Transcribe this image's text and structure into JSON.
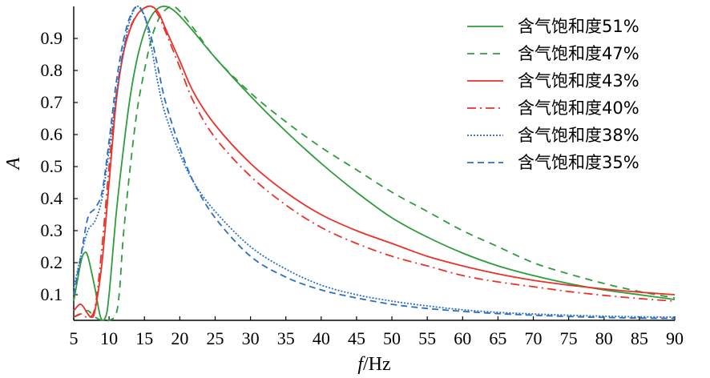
{
  "chart_data": {
    "type": "line",
    "xlabel": {
      "italic": "f",
      "rest": "/Hz"
    },
    "ylabel": "A",
    "xlim": [
      5,
      90
    ],
    "ylim": [
      0.02,
      1.0
    ],
    "xticks": [
      5,
      10,
      15,
      20,
      25,
      30,
      35,
      40,
      45,
      50,
      55,
      60,
      65,
      70,
      75,
      80,
      85,
      90
    ],
    "yticks": [
      0.1,
      0.2,
      0.3,
      0.4,
      0.5,
      0.6,
      0.7,
      0.8,
      0.9
    ],
    "ytick_labels": [
      "0.1",
      "0.2",
      "0.3",
      "0.4",
      "0.5",
      "0.6",
      "0.7",
      "0.8",
      "0.9"
    ],
    "grid": false,
    "legend_position": "top-right",
    "series": [
      {
        "name": "含气饱和度51%",
        "color": "#2e9c3a",
        "dash": "solid",
        "points": [
          [
            5,
            0.08
          ],
          [
            6,
            0.2
          ],
          [
            6.5,
            0.23
          ],
          [
            7,
            0.22
          ],
          [
            8,
            0.12
          ],
          [
            8.8,
            0.03
          ],
          [
            9.5,
            0.03
          ],
          [
            10,
            0.1
          ],
          [
            11,
            0.35
          ],
          [
            12,
            0.55
          ],
          [
            13,
            0.72
          ],
          [
            14,
            0.84
          ],
          [
            15,
            0.92
          ],
          [
            16,
            0.97
          ],
          [
            17,
            0.995
          ],
          [
            18,
            1.0
          ],
          [
            19,
            0.99
          ],
          [
            20,
            0.97
          ],
          [
            22,
            0.92
          ],
          [
            25,
            0.84
          ],
          [
            30,
            0.72
          ],
          [
            35,
            0.61
          ],
          [
            40,
            0.51
          ],
          [
            45,
            0.42
          ],
          [
            50,
            0.34
          ],
          [
            55,
            0.28
          ],
          [
            60,
            0.23
          ],
          [
            65,
            0.19
          ],
          [
            70,
            0.16
          ],
          [
            75,
            0.135
          ],
          [
            80,
            0.115
          ],
          [
            85,
            0.1
          ],
          [
            90,
            0.085
          ]
        ]
      },
      {
        "name": "含气饱和度47%",
        "color": "#2e9c3a",
        "dash": "9,7",
        "points": [
          [
            5,
            0.03
          ],
          [
            6,
            0.04
          ],
          [
            7,
            0.05
          ],
          [
            8,
            0.03
          ],
          [
            9,
            0.02
          ],
          [
            10,
            0.02
          ],
          [
            11,
            0.04
          ],
          [
            11.5,
            0.12
          ],
          [
            12,
            0.28
          ],
          [
            13,
            0.5
          ],
          [
            14,
            0.68
          ],
          [
            15,
            0.8
          ],
          [
            16,
            0.9
          ],
          [
            17,
            0.96
          ],
          [
            18,
            0.99
          ],
          [
            19,
            1.0
          ],
          [
            20,
            0.985
          ],
          [
            22,
            0.93
          ],
          [
            25,
            0.84
          ],
          [
            30,
            0.73
          ],
          [
            35,
            0.64
          ],
          [
            40,
            0.56
          ],
          [
            45,
            0.49
          ],
          [
            50,
            0.42
          ],
          [
            55,
            0.36
          ],
          [
            60,
            0.3
          ],
          [
            65,
            0.25
          ],
          [
            70,
            0.2
          ],
          [
            75,
            0.165
          ],
          [
            80,
            0.135
          ],
          [
            85,
            0.11
          ],
          [
            90,
            0.09
          ]
        ]
      },
      {
        "name": "含气饱和度43%",
        "color": "#e8322a",
        "dash": "solid",
        "points": [
          [
            5,
            0.05
          ],
          [
            6,
            0.07
          ],
          [
            7,
            0.04
          ],
          [
            7.5,
            0.03
          ],
          [
            8,
            0.05
          ],
          [
            9,
            0.2
          ],
          [
            10,
            0.45
          ],
          [
            11,
            0.7
          ],
          [
            12,
            0.85
          ],
          [
            13,
            0.93
          ],
          [
            14,
            0.975
          ],
          [
            15,
            0.995
          ],
          [
            16,
            1.0
          ],
          [
            17,
            0.98
          ],
          [
            18,
            0.93
          ],
          [
            20,
            0.83
          ],
          [
            22,
            0.73
          ],
          [
            25,
            0.63
          ],
          [
            30,
            0.51
          ],
          [
            35,
            0.42
          ],
          [
            40,
            0.35
          ],
          [
            45,
            0.3
          ],
          [
            50,
            0.26
          ],
          [
            55,
            0.22
          ],
          [
            60,
            0.19
          ],
          [
            65,
            0.165
          ],
          [
            70,
            0.145
          ],
          [
            75,
            0.13
          ],
          [
            80,
            0.118
          ],
          [
            85,
            0.108
          ],
          [
            90,
            0.1
          ]
        ]
      },
      {
        "name": "含气饱和度40%",
        "color": "#e8322a",
        "dash": "11,5,2,5",
        "points": [
          [
            5,
            0.03
          ],
          [
            6,
            0.04
          ],
          [
            7,
            0.03
          ],
          [
            8,
            0.06
          ],
          [
            9,
            0.25
          ],
          [
            10,
            0.5
          ],
          [
            11,
            0.72
          ],
          [
            12,
            0.86
          ],
          [
            13,
            0.935
          ],
          [
            14,
            0.975
          ],
          [
            15,
            0.995
          ],
          [
            16,
            1.0
          ],
          [
            17,
            0.97
          ],
          [
            18,
            0.92
          ],
          [
            20,
            0.81
          ],
          [
            22,
            0.7
          ],
          [
            25,
            0.59
          ],
          [
            30,
            0.47
          ],
          [
            35,
            0.38
          ],
          [
            40,
            0.31
          ],
          [
            45,
            0.26
          ],
          [
            50,
            0.22
          ],
          [
            55,
            0.19
          ],
          [
            60,
            0.16
          ],
          [
            65,
            0.14
          ],
          [
            70,
            0.125
          ],
          [
            75,
            0.11
          ],
          [
            80,
            0.098
          ],
          [
            85,
            0.088
          ],
          [
            90,
            0.08
          ]
        ]
      },
      {
        "name": "含气饱和度38%",
        "color": "#2c6fc0",
        "dash": "2,2",
        "points": [
          [
            5,
            0.12
          ],
          [
            6,
            0.22
          ],
          [
            7,
            0.3
          ],
          [
            8,
            0.33
          ],
          [
            9,
            0.4
          ],
          [
            10,
            0.55
          ],
          [
            11,
            0.72
          ],
          [
            12,
            0.86
          ],
          [
            13,
            0.96
          ],
          [
            14,
            1.0
          ],
          [
            15,
            0.97
          ],
          [
            16,
            0.87
          ],
          [
            17,
            0.75
          ],
          [
            18,
            0.66
          ],
          [
            20,
            0.54
          ],
          [
            22,
            0.45
          ],
          [
            25,
            0.36
          ],
          [
            30,
            0.25
          ],
          [
            35,
            0.18
          ],
          [
            40,
            0.13
          ],
          [
            45,
            0.1
          ],
          [
            50,
            0.08
          ],
          [
            55,
            0.065
          ],
          [
            60,
            0.053
          ],
          [
            65,
            0.045
          ],
          [
            70,
            0.04
          ],
          [
            75,
            0.036
          ],
          [
            80,
            0.033
          ],
          [
            85,
            0.031
          ],
          [
            90,
            0.03
          ]
        ]
      },
      {
        "name": "含气饱和度35%",
        "color": "#2c6fc0",
        "dash": "8,5",
        "points": [
          [
            5,
            0.1
          ],
          [
            6,
            0.22
          ],
          [
            7,
            0.34
          ],
          [
            8,
            0.37
          ],
          [
            9,
            0.42
          ],
          [
            10,
            0.58
          ],
          [
            11,
            0.76
          ],
          [
            12,
            0.89
          ],
          [
            13,
            0.97
          ],
          [
            14,
            1.0
          ],
          [
            15,
            0.97
          ],
          [
            16,
            0.9
          ],
          [
            17,
            0.8
          ],
          [
            18,
            0.7
          ],
          [
            20,
            0.56
          ],
          [
            22,
            0.45
          ],
          [
            25,
            0.34
          ],
          [
            30,
            0.22
          ],
          [
            35,
            0.155
          ],
          [
            40,
            0.115
          ],
          [
            45,
            0.09
          ],
          [
            50,
            0.07
          ],
          [
            55,
            0.057
          ],
          [
            60,
            0.048
          ],
          [
            65,
            0.041
          ],
          [
            70,
            0.036
          ],
          [
            75,
            0.032
          ],
          [
            80,
            0.029
          ],
          [
            85,
            0.027
          ],
          [
            90,
            0.026
          ]
        ]
      }
    ]
  }
}
